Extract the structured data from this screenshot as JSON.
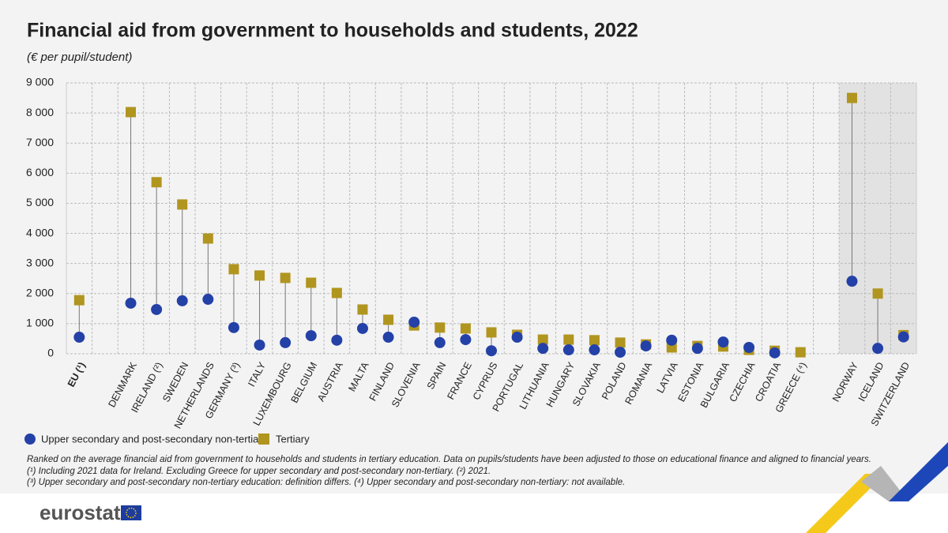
{
  "chart_data": {
    "type": "dumbbell",
    "title": "Financial aid from government to households and students, 2022",
    "subtitle": "(€ per pupil/student)",
    "categories": [
      "EU (¹)",
      null,
      "DENMARK",
      "IRELAND (²)",
      "SWEDEN",
      "NETHERLANDS",
      "GERMANY (³)",
      "ITALY",
      "LUXEMBOURG",
      "BELGIUM",
      "AUSTRIA",
      "MALTA",
      "FINLAND",
      "SLOVENIA",
      "SPAIN",
      "FRANCE",
      "CYPRUS",
      "PORTUGAL",
      "LITHUANIA",
      "HUNGARY",
      "SLOVAKIA",
      "POLAND",
      "ROMANIA",
      "LATVIA",
      "ESTONIA",
      "BULGARIA",
      "CZECHIA",
      "CROATIA",
      "GREECE (⁴)",
      null,
      "NORWAY",
      "ICELAND",
      "SWITZERLAND"
    ],
    "series": [
      {
        "name": "Upper secondary and post-secondary non-tertiary",
        "color": "#2441a8",
        "marker": "circle",
        "values": [
          550,
          null,
          1680,
          1470,
          1760,
          1810,
          870,
          290,
          370,
          600,
          450,
          840,
          550,
          1050,
          370,
          470,
          100,
          550,
          180,
          130,
          130,
          50,
          260,
          450,
          180,
          390,
          210,
          30,
          null,
          null,
          2410,
          180,
          560
        ]
      },
      {
        "name": "Tertiary",
        "color": "#b0951f",
        "marker": "square",
        "values": [
          1780,
          null,
          8030,
          5700,
          4960,
          3830,
          2810,
          2600,
          2520,
          2360,
          2020,
          1470,
          1130,
          940,
          870,
          840,
          710,
          630,
          470,
          470,
          450,
          370,
          310,
          210,
          260,
          240,
          130,
          100,
          50,
          null,
          8500,
          2000,
          620
        ]
      }
    ],
    "ylim": [
      0,
      9000
    ],
    "yticks": [
      0,
      {
        "value": 1000,
        "label": "1 000"
      },
      {
        "value": 2000,
        "label": "2 000"
      },
      {
        "value": 3000,
        "label": "3 000"
      },
      {
        "value": 4000,
        "label": "4 000"
      },
      {
        "value": 5000,
        "label": "5 000"
      },
      {
        "value": 6000,
        "label": "6 000"
      },
      {
        "value": 7000,
        "label": "7 000"
      },
      {
        "value": 8000,
        "label": "8 000"
      },
      {
        "value": 9000,
        "label": "9 000"
      }
    ],
    "grid": true,
    "legend": "bottom"
  },
  "notes": [
    "Ranked on the average financial aid from government to households and students in tertiary education. Data on pupils/students have been adjusted to those on educational finance and aligned to financial years.",
    "(¹) Including 2021 data for Ireland. Excluding Greece for upper secondary and post-secondary non-tertiary. (²) 2021.",
    "(³) Upper secondary and post-secondary non-tertiary education: definition differs. (⁴) Upper secondary and post-secondary non-tertiary: not available."
  ],
  "logo": "eurostat"
}
